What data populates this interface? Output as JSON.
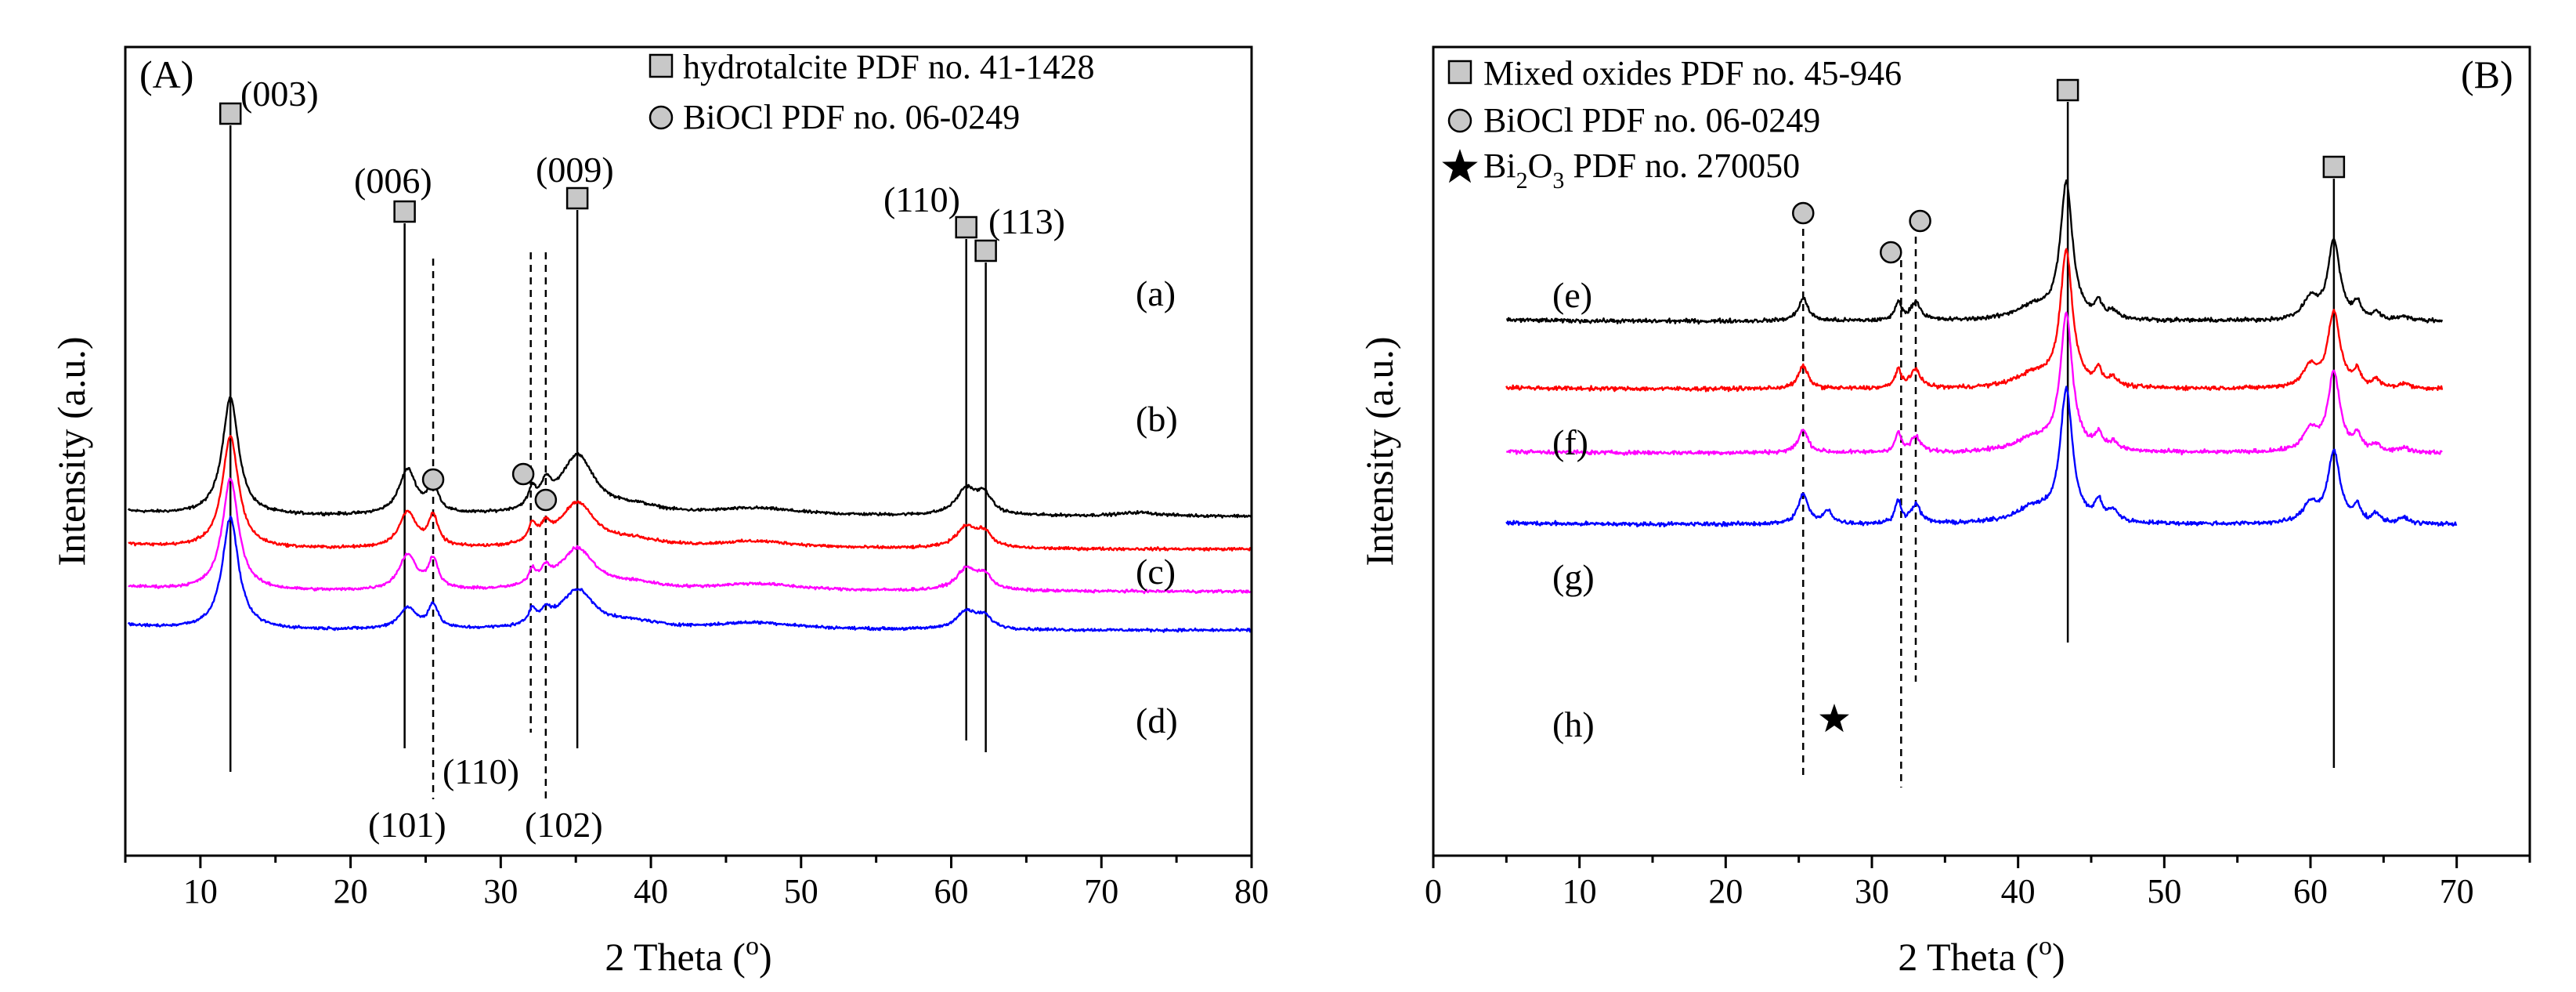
{
  "chart_data": [
    {
      "type": "line",
      "panel_label": "(A)",
      "xlabel": "2 Theta (°)",
      "xlabel_main": "2 Theta (",
      "xlabel_sup": "o",
      "xlabel_end": ")",
      "ylabel": "Intensity (a.u.)",
      "xlim": [
        5,
        80
      ],
      "xticks": [
        10,
        20,
        30,
        40,
        50,
        60,
        70,
        80
      ],
      "yticks_shown": false,
      "legend": [
        {
          "marker": "square",
          "text": "hydrotalcite PDF no. 41-1428"
        },
        {
          "marker": "circle",
          "text": "BiOCl PDF no. 06-0249"
        }
      ],
      "series": [
        {
          "name": "(a)",
          "color": "#000000",
          "baseline": 0.64,
          "peaks": [
            [
              12.0,
              1.0,
              0.65
            ],
            [
              23.8,
              0.38,
              0.7
            ],
            [
              25.5,
              0.25,
              0.4
            ],
            [
              32.1,
              0.15,
              0.3
            ],
            [
              33.0,
              0.18,
              0.4
            ],
            [
              35.1,
              0.5,
              1.4
            ],
            [
              39.0,
              0.06,
              2.0
            ],
            [
              47.0,
              0.06,
              3.5
            ],
            [
              61.0,
              0.22,
              0.8
            ],
            [
              62.2,
              0.16,
              0.6
            ],
            [
              72.5,
              0.03,
              1.5
            ]
          ]
        },
        {
          "name": "(b)",
          "color": "#ff0000",
          "baseline": 0.36,
          "peaks": [
            [
              12.0,
              0.95,
              0.65
            ],
            [
              23.8,
              0.3,
              0.7
            ],
            [
              25.5,
              0.25,
              0.4
            ],
            [
              32.1,
              0.15,
              0.3
            ],
            [
              33.0,
              0.12,
              0.4
            ],
            [
              35.1,
              0.38,
              1.4
            ],
            [
              39.0,
              0.06,
              2.0
            ],
            [
              47.0,
              0.06,
              3.5
            ],
            [
              61.0,
              0.18,
              0.8
            ],
            [
              62.2,
              0.12,
              0.6
            ]
          ]
        },
        {
          "name": "(c)",
          "color": "#ff00ff",
          "baseline": 0.0,
          "peaks": [
            [
              12.0,
              0.95,
              0.65
            ],
            [
              23.8,
              0.3,
              0.7
            ],
            [
              25.5,
              0.25,
              0.4
            ],
            [
              32.1,
              0.12,
              0.3
            ],
            [
              33.0,
              0.12,
              0.4
            ],
            [
              35.1,
              0.35,
              1.4
            ],
            [
              39.0,
              0.05,
              2.0
            ],
            [
              47.0,
              0.06,
              3.5
            ],
            [
              61.0,
              0.18,
              0.8
            ],
            [
              62.2,
              0.12,
              0.6
            ]
          ]
        },
        {
          "name": "(d)",
          "color": "#0000ff",
          "baseline": -0.33,
          "peaks": [
            [
              12.0,
              0.95,
              0.65
            ],
            [
              23.8,
              0.18,
              0.7
            ],
            [
              25.5,
              0.2,
              0.4
            ],
            [
              32.1,
              0.12,
              0.3
            ],
            [
              33.0,
              0.1,
              0.4
            ],
            [
              35.1,
              0.33,
              1.4
            ],
            [
              39.0,
              0.05,
              2.0
            ],
            [
              47.0,
              0.06,
              3.5
            ],
            [
              61.0,
              0.15,
              0.8
            ],
            [
              62.2,
              0.1,
              0.6
            ]
          ]
        }
      ],
      "reference_lines": {
        "solid": [
          12.0,
          23.6,
          35.1,
          61.0,
          62.3
        ],
        "dashed": [
          25.5,
          32.0,
          33.0
        ]
      },
      "annotations": {
        "miller_top": [
          "(003)",
          "(006)",
          "(009)",
          "(110)",
          "(113)"
        ],
        "miller_bottom": [
          "(101)",
          "(110)",
          "(102)"
        ]
      }
    },
    {
      "type": "line",
      "panel_label": "(B)",
      "xlabel": "2 Theta (°)",
      "xlabel_main": "2 Theta (",
      "xlabel_sup": "o",
      "xlabel_end": ")",
      "ylabel": "Intensity (a.u.)",
      "xlim": [
        0,
        75
      ],
      "xticks": [
        0,
        10,
        20,
        30,
        40,
        50,
        60,
        70
      ],
      "yticks_shown": false,
      "legend": [
        {
          "marker": "square",
          "text": "Mixed oxides PDF no. 45-946"
        },
        {
          "marker": "circle",
          "text": "BiOCl PDF no. 06-0249"
        },
        {
          "marker": "star",
          "text": "Bi2O3 PDF no. 270050",
          "text_main": "Bi",
          "sub1": "2",
          "text_mid": "O",
          "sub2": "3",
          "text_end": " PDF no. 270050"
        }
      ],
      "series": [
        {
          "name": "(e)",
          "color": "#000000",
          "baseline": 0.0,
          "peaks": [
            [
              25.3,
              0.6,
              0.4
            ],
            [
              31.8,
              0.5,
              0.25
            ],
            [
              33.0,
              0.5,
              0.4
            ],
            [
              41.0,
              0.35,
              1.5
            ],
            [
              43.3,
              3.6,
              0.5
            ],
            [
              45.5,
              0.4,
              0.3
            ],
            [
              46.5,
              0.2,
              0.4
            ],
            [
              60.0,
              0.55,
              0.6
            ],
            [
              61.6,
              2.1,
              0.5
            ],
            [
              63.2,
              0.4,
              0.3
            ],
            [
              64.5,
              0.2,
              0.3
            ],
            [
              66.4,
              0.12,
              0.4
            ]
          ]
        },
        {
          "name": "(f)",
          "color": "#ff0000",
          "baseline": -1.8,
          "peaks": [
            [
              25.3,
              0.6,
              0.4
            ],
            [
              31.8,
              0.5,
              0.25
            ],
            [
              33.0,
              0.5,
              0.4
            ],
            [
              41.0,
              0.35,
              1.5
            ],
            [
              43.3,
              3.6,
              0.5
            ],
            [
              45.5,
              0.4,
              0.3
            ],
            [
              46.5,
              0.2,
              0.4
            ],
            [
              60.0,
              0.55,
              0.6
            ],
            [
              61.6,
              2.0,
              0.5
            ],
            [
              63.2,
              0.4,
              0.3
            ],
            [
              64.5,
              0.2,
              0.3
            ],
            [
              66.4,
              0.12,
              0.4
            ]
          ]
        },
        {
          "name": "(g)",
          "color": "#ff00ff",
          "baseline": -3.5,
          "peaks": [
            [
              25.3,
              0.6,
              0.4
            ],
            [
              31.8,
              0.5,
              0.25
            ],
            [
              33.0,
              0.4,
              0.4
            ],
            [
              41.0,
              0.35,
              1.5
            ],
            [
              43.3,
              3.6,
              0.5
            ],
            [
              45.5,
              0.4,
              0.3
            ],
            [
              46.5,
              0.2,
              0.4
            ],
            [
              60.0,
              0.55,
              0.6
            ],
            [
              61.6,
              2.1,
              0.5
            ],
            [
              63.2,
              0.4,
              0.3
            ],
            [
              64.5,
              0.2,
              0.3
            ],
            [
              66.4,
              0.12,
              0.4
            ]
          ]
        },
        {
          "name": "(h)",
          "color": "#0000ff",
          "baseline": -5.4,
          "peaks": [
            [
              25.3,
              0.8,
              0.4
            ],
            [
              27.0,
              0.35,
              0.35
            ],
            [
              31.8,
              0.6,
              0.25
            ],
            [
              33.0,
              0.5,
              0.4
            ],
            [
              41.0,
              0.4,
              1.5
            ],
            [
              43.3,
              3.5,
              0.5
            ],
            [
              45.5,
              0.5,
              0.3
            ],
            [
              46.5,
              0.3,
              0.4
            ],
            [
              60.0,
              0.5,
              0.6
            ],
            [
              61.6,
              1.9,
              0.5
            ],
            [
              63.2,
              0.4,
              0.3
            ],
            [
              64.5,
              0.25,
              0.3
            ],
            [
              66.4,
              0.15,
              0.4
            ]
          ]
        }
      ],
      "reference_lines": {
        "solid": [
          43.4,
          61.6
        ],
        "dashed": [
          25.3,
          32.0,
          33.0
        ]
      },
      "annotations": {
        "bi2o3_star_at": 27.0
      }
    }
  ]
}
